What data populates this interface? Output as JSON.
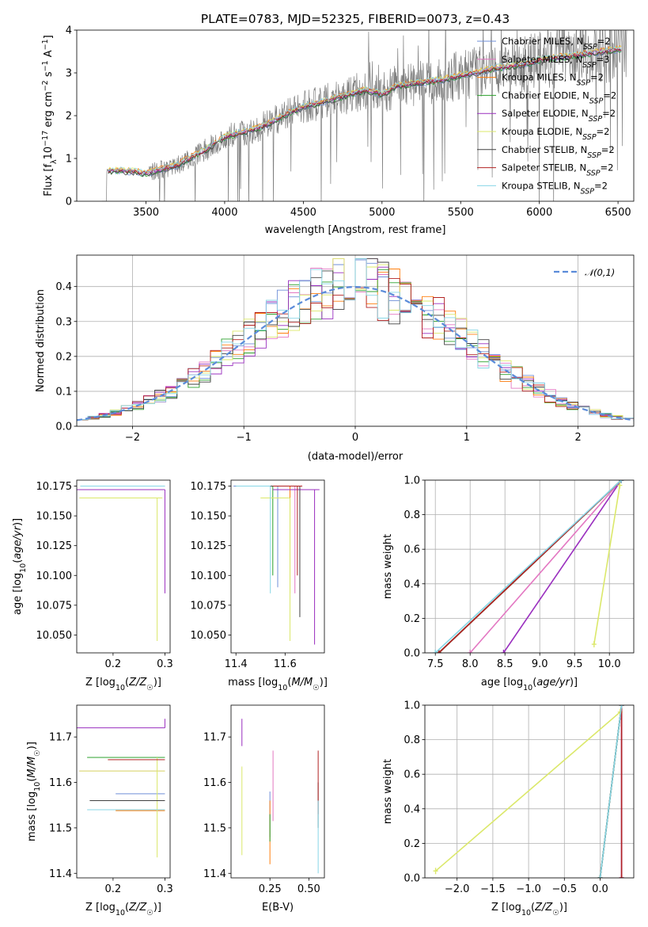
{
  "figure_title": "PLATE=0783, MJD=52325, FIBERID=0073, z=0.43",
  "colors": {
    "Chabrier MILES": "#6f8fd8",
    "Salpeter MILES": "#e377c2",
    "Kroupa MILES": "#ff7f0e",
    "Chabrier ELODIE": "#2ca02c",
    "Salpeter ELODIE": "#9a2fbf",
    "Kroupa ELODIE": "#dbe86a",
    "Chabrier STELIB": "#404040",
    "Salpeter STELIB": "#b22222",
    "Kroupa STELIB": "#87d6e6",
    "data": "#808080",
    "gaussian": "#5b8bd9"
  },
  "chart_data": [
    {
      "id": "spectrum",
      "type": "line",
      "xlabel": "wavelength [Angstrom, rest frame]",
      "ylabel": "Flux [f_λ 10^-17 erg cm^-2 s^-1 A^-1]",
      "xlim": [
        3060,
        6600
      ],
      "ylim": [
        0,
        4
      ],
      "xticks": [
        3500,
        4000,
        4500,
        5000,
        5500,
        6000,
        6500
      ],
      "yticks": [
        0,
        1,
        2,
        3,
        4
      ],
      "legend_position": "top-right",
      "legend": [
        {
          "name": "Chabrier MILES",
          "nssp": "2"
        },
        {
          "name": "Salpeter MILES",
          "nssp": "3"
        },
        {
          "name": "Kroupa MILES",
          "nssp": "2"
        },
        {
          "name": "Chabrier ELODIE",
          "nssp": "2"
        },
        {
          "name": "Salpeter ELODIE",
          "nssp": "2"
        },
        {
          "name": "Kroupa ELODIE",
          "nssp": "2"
        },
        {
          "name": "Chabrier STELIB",
          "nssp": "2"
        },
        {
          "name": "Salpeter STELIB",
          "nssp": "2"
        },
        {
          "name": "Kroupa STELIB",
          "nssp": "2"
        }
      ],
      "model_continuum": {
        "wavelength": [
          3200,
          3300,
          3400,
          3500,
          3600,
          3700,
          3800,
          3900,
          4000,
          4100,
          4200,
          4300,
          4400,
          4500,
          4600,
          4700,
          4800,
          4900,
          5000,
          5100,
          5200,
          5300,
          5400,
          5500,
          5600,
          5700,
          5800,
          5900,
          6000,
          6100,
          6200,
          6300,
          6400,
          6500
        ],
        "flux": [
          0.7,
          0.72,
          0.7,
          0.65,
          0.75,
          0.85,
          1.05,
          1.25,
          1.5,
          1.6,
          1.7,
          1.85,
          2.05,
          2.2,
          2.3,
          2.4,
          2.5,
          2.6,
          2.5,
          2.7,
          2.75,
          2.8,
          2.85,
          2.95,
          3.0,
          3.1,
          3.15,
          3.2,
          3.3,
          3.35,
          3.4,
          3.45,
          3.5,
          3.55
        ]
      }
    },
    {
      "id": "residuals",
      "type": "line",
      "xlabel": "(data-model)/error",
      "ylabel": "Normed distribution",
      "xlim": [
        -2.5,
        2.5
      ],
      "ylim": [
        0,
        0.49
      ],
      "xticks": [
        -2,
        -1,
        0,
        1,
        2
      ],
      "yticks": [
        0.0,
        0.1,
        0.2,
        0.3,
        0.4
      ],
      "legend_position": "top-right",
      "gaussian_label": "𝒩(0,1)",
      "gaussian": {
        "mean": 0,
        "sigma": 1
      }
    },
    {
      "id": "age_vs_Z",
      "type": "scatter",
      "xlabel": "Z [log10(Z/Z☉)]",
      "ylabel": "age [log10(age/yr)]",
      "xlim": [
        0.13,
        0.31
      ],
      "ylim": [
        10.035,
        10.18
      ],
      "xticks": [
        0.2,
        0.3
      ],
      "yticks": [
        10.05,
        10.075,
        10.1,
        10.125,
        10.15,
        10.175
      ],
      "series": [
        {
          "name": "Chabrier MILES",
          "x": 0.297,
          "y": 10.175,
          "xerr": [
            0.16,
            0.003
          ],
          "yerr": [
            0.0,
            0.0
          ]
        },
        {
          "name": "Salpeter MILES",
          "x": 0.297,
          "y": 10.175,
          "xerr": [
            0.16,
            0.003
          ],
          "yerr": [
            0.0,
            0.0
          ]
        },
        {
          "name": "Kroupa MILES",
          "x": 0.297,
          "y": 10.175,
          "xerr": [
            0.16,
            0.003
          ],
          "yerr": [
            0.0,
            0.0
          ]
        },
        {
          "name": "Chabrier ELODIE",
          "x": 0.297,
          "y": 10.175,
          "xerr": [
            0.16,
            0.003
          ],
          "yerr": [
            0.0,
            0.0
          ]
        },
        {
          "name": "Salpeter ELODIE",
          "x": 0.3,
          "y": 10.172,
          "xerr": [
            0.17,
            0.0
          ],
          "yerr": [
            0.087,
            0.0
          ]
        },
        {
          "name": "Kroupa ELODIE",
          "x": 0.285,
          "y": 10.165,
          "xerr": [
            0.15,
            0.01
          ],
          "yerr": [
            0.12,
            0.0
          ]
        },
        {
          "name": "Chabrier STELIB",
          "x": 0.297,
          "y": 10.175,
          "xerr": [
            0.16,
            0.003
          ],
          "yerr": [
            0.0,
            0.0
          ]
        },
        {
          "name": "Salpeter STELIB",
          "x": 0.297,
          "y": 10.175,
          "xerr": [
            0.16,
            0.003
          ],
          "yerr": [
            0.0,
            0.0
          ]
        },
        {
          "name": "Kroupa STELIB",
          "x": 0.297,
          "y": 10.175,
          "xerr": [
            0.16,
            0.003
          ],
          "yerr": [
            0.0,
            0.0
          ]
        }
      ]
    },
    {
      "id": "age_vs_mass",
      "type": "scatter",
      "xlabel": "mass [log10(M/M☉)]",
      "xlim": [
        11.38,
        11.76
      ],
      "ylim": [
        10.035,
        10.18
      ],
      "xticks": [
        11.4,
        11.6
      ],
      "yticks": [
        10.05,
        10.075,
        10.1,
        10.125,
        10.15,
        10.175
      ],
      "series": [
        {
          "name": "Chabrier MILES",
          "x": 11.57,
          "y": 10.175,
          "xerr": [
            0.18,
            0.0
          ],
          "yerr": [
            0.085,
            0.0
          ]
        },
        {
          "name": "Salpeter MILES",
          "x": 11.64,
          "y": 10.175,
          "xerr": [
            0.12,
            0.02
          ],
          "yerr": [
            0.09,
            0.0
          ]
        },
        {
          "name": "Kroupa MILES",
          "x": 11.62,
          "y": 10.175,
          "xerr": [
            0.2,
            0.03
          ],
          "yerr": [
            0.09,
            0.0
          ]
        },
        {
          "name": "Chabrier ELODIE",
          "x": 11.55,
          "y": 10.175,
          "xerr": [
            0.15,
            0.0
          ],
          "yerr": [
            0.075,
            0.0
          ]
        },
        {
          "name": "Salpeter ELODIE",
          "x": 11.72,
          "y": 10.172,
          "xerr": [
            0.17,
            0.02
          ],
          "yerr": [
            0.13,
            0.0
          ]
        },
        {
          "name": "Kroupa ELODIE",
          "x": 11.62,
          "y": 10.165,
          "xerr": [
            0.12,
            0.0
          ],
          "yerr": [
            0.12,
            0.0
          ]
        },
        {
          "name": "Chabrier STELIB",
          "x": 11.66,
          "y": 10.175,
          "xerr": [
            0.25,
            0.0
          ],
          "yerr": [
            0.11,
            0.0
          ]
        },
        {
          "name": "Salpeter STELIB",
          "x": 11.65,
          "y": 10.175,
          "xerr": [
            0.1,
            0.02
          ],
          "yerr": [
            0.075,
            0.0
          ]
        },
        {
          "name": "Kroupa STELIB",
          "x": 11.54,
          "y": 10.175,
          "xerr": [
            0.14,
            0.0
          ],
          "yerr": [
            0.09,
            0.0
          ]
        }
      ]
    },
    {
      "id": "massweight_vs_age",
      "type": "line",
      "xlabel": "age [log10(age/yr)]",
      "ylabel": "mass weight",
      "xlim": [
        7.35,
        10.35
      ],
      "ylim": [
        0,
        1
      ],
      "xticks": [
        7.5,
        8.0,
        8.5,
        9.0,
        9.5,
        10.0
      ],
      "yticks": [
        0.0,
        0.2,
        0.4,
        0.6,
        0.8,
        1.0
      ],
      "series": [
        {
          "name": "Chabrier MILES",
          "x": [
            7.55,
            10.17
          ],
          "y": [
            0.0,
            1.0
          ]
        },
        {
          "name": "Salpeter MILES",
          "x": [
            8.0,
            10.17
          ],
          "y": [
            0.0,
            1.0
          ]
        },
        {
          "name": "Kroupa MILES",
          "x": [
            7.55,
            10.17
          ],
          "y": [
            0.0,
            1.0
          ]
        },
        {
          "name": "Chabrier ELODIE",
          "x": [
            7.55,
            10.17
          ],
          "y": [
            0.0,
            1.0
          ]
        },
        {
          "name": "Salpeter ELODIE",
          "x": [
            8.48,
            10.17
          ],
          "y": [
            0.0,
            1.0
          ]
        },
        {
          "name": "Kroupa ELODIE",
          "x": [
            9.78,
            10.15
          ],
          "y": [
            0.05,
            0.97
          ]
        },
        {
          "name": "Chabrier STELIB",
          "x": [
            7.55,
            10.17
          ],
          "y": [
            0.0,
            1.0
          ]
        },
        {
          "name": "Salpeter STELIB",
          "x": [
            7.55,
            10.17
          ],
          "y": [
            0.0,
            1.0
          ]
        },
        {
          "name": "Kroupa STELIB",
          "x": [
            7.5,
            10.17
          ],
          "y": [
            0.0,
            1.0
          ]
        }
      ]
    },
    {
      "id": "mass_vs_Z",
      "type": "scatter",
      "xlabel": "Z [log10(Z/Z☉)]",
      "ylabel": "mass [log10(M/M☉)]",
      "xlim": [
        0.13,
        0.31
      ],
      "ylim": [
        11.39,
        11.77
      ],
      "xticks": [
        0.2,
        0.3
      ],
      "yticks": [
        11.4,
        11.5,
        11.6,
        11.7
      ],
      "series": [
        {
          "name": "Chabrier MILES",
          "x": 0.3,
          "y": 11.575,
          "xerr": [
            0.095,
            0.0
          ],
          "yerr": [
            0.0,
            0.0
          ]
        },
        {
          "name": "Salpeter MILES",
          "x": 0.3,
          "y": 11.625,
          "xerr": [
            0.165,
            0.0
          ],
          "yerr": [
            0.0,
            0.0
          ]
        },
        {
          "name": "Kroupa MILES",
          "x": 0.3,
          "y": 11.538,
          "xerr": [
            0.095,
            0.0
          ],
          "yerr": [
            0.0,
            0.0
          ]
        },
        {
          "name": "Chabrier ELODIE",
          "x": 0.3,
          "y": 11.655,
          "xerr": [
            0.15,
            0.0
          ],
          "yerr": [
            0.0,
            0.0
          ]
        },
        {
          "name": "Salpeter ELODIE",
          "x": 0.3,
          "y": 11.72,
          "xerr": [
            0.17,
            0.0
          ],
          "yerr": [
            0.0,
            0.02
          ]
        },
        {
          "name": "Kroupa ELODIE",
          "x": 0.285,
          "y": 11.625,
          "xerr": [
            0.15,
            0.015
          ],
          "yerr": [
            0.19,
            0.03
          ]
        },
        {
          "name": "Chabrier STELIB",
          "x": 0.3,
          "y": 11.56,
          "xerr": [
            0.145,
            0.0
          ],
          "yerr": [
            0.0,
            0.0
          ]
        },
        {
          "name": "Salpeter STELIB",
          "x": 0.3,
          "y": 11.65,
          "xerr": [
            0.11,
            0.0
          ],
          "yerr": [
            0.0,
            0.0
          ]
        },
        {
          "name": "Kroupa STELIB",
          "x": 0.3,
          "y": 11.54,
          "xerr": [
            0.15,
            0.0
          ],
          "yerr": [
            0.0,
            0.0
          ]
        }
      ]
    },
    {
      "id": "mass_vs_EBV",
      "type": "scatter",
      "xlabel": "E(B-V)",
      "xlim": [
        0.0,
        0.6
      ],
      "ylim": [
        11.39,
        11.77
      ],
      "xticks": [
        0.25,
        0.5
      ],
      "yticks": [
        11.4,
        11.5,
        11.6,
        11.7
      ],
      "series": [
        {
          "name": "Chabrier MILES",
          "x": 0.25,
          "y": 11.5,
          "xerr": [
            0.0,
            0.0
          ],
          "yerr": [
            0.02,
            0.08
          ]
        },
        {
          "name": "Salpeter MILES",
          "x": 0.27,
          "y": 11.6,
          "xerr": [
            0.0,
            0.0
          ],
          "yerr": [
            0.085,
            0.07
          ]
        },
        {
          "name": "Kroupa MILES",
          "x": 0.25,
          "y": 11.5,
          "xerr": [
            0.0,
            0.0
          ],
          "yerr": [
            0.08,
            0.06
          ]
        },
        {
          "name": "Chabrier ELODIE",
          "x": 0.25,
          "y": 11.5,
          "xerr": [
            0.0,
            0.0
          ],
          "yerr": [
            0.03,
            0.03
          ]
        },
        {
          "name": "Salpeter ELODIE",
          "x": 0.07,
          "y": 11.72,
          "xerr": [
            0.0,
            0.0
          ],
          "yerr": [
            0.04,
            0.02
          ]
        },
        {
          "name": "Kroupa ELODIE",
          "x": 0.07,
          "y": 11.55,
          "xerr": [
            0.0,
            0.0
          ],
          "yerr": [
            0.11,
            0.085
          ]
        },
        {
          "name": "Chabrier STELIB",
          "x": 0.56,
          "y": 11.55,
          "xerr": [
            0.0,
            0.0
          ],
          "yerr": [
            0.05,
            0.05
          ]
        },
        {
          "name": "Salpeter STELIB",
          "x": 0.56,
          "y": 11.58,
          "xerr": [
            0.0,
            0.0
          ],
          "yerr": [
            0.05,
            0.09
          ]
        },
        {
          "name": "Kroupa STELIB",
          "x": 0.56,
          "y": 11.5,
          "xerr": [
            0.0,
            0.0
          ],
          "yerr": [
            0.1,
            0.06
          ]
        }
      ]
    },
    {
      "id": "massweight_vs_Z",
      "type": "line",
      "xlabel": "Z [log10(Z/Z☉)]",
      "ylabel": "mass weight",
      "xlim": [
        -2.45,
        0.47
      ],
      "ylim": [
        0,
        1
      ],
      "xticks": [
        -2.0,
        -1.5,
        -1.0,
        -0.5,
        0.0
      ],
      "yticks": [
        0.0,
        0.2,
        0.4,
        0.6,
        0.8,
        1.0
      ],
      "series": [
        {
          "name": "Chabrier MILES",
          "x": [
            0.0,
            0.3
          ],
          "y": [
            0.0,
            1.0
          ]
        },
        {
          "name": "Salpeter MILES",
          "x": [
            0.0,
            0.3
          ],
          "y": [
            0.0,
            1.0
          ]
        },
        {
          "name": "Kroupa MILES",
          "x": [
            0.0,
            0.3
          ],
          "y": [
            0.0,
            1.0
          ]
        },
        {
          "name": "Chabrier ELODIE",
          "x": [
            0.0,
            0.3
          ],
          "y": [
            0.0,
            1.0
          ]
        },
        {
          "name": "Salpeter ELODIE",
          "x": [
            0.3,
            0.3
          ],
          "y": [
            0.0,
            1.0
          ]
        },
        {
          "name": "Kroupa ELODIE",
          "x": [
            -2.3,
            0.28
          ],
          "y": [
            0.04,
            0.96
          ]
        },
        {
          "name": "Chabrier STELIB",
          "x": [
            0.0,
            0.3
          ],
          "y": [
            0.0,
            1.0
          ]
        },
        {
          "name": "Salpeter STELIB",
          "x": [
            0.3,
            0.3
          ],
          "y": [
            0.0,
            1.0
          ]
        },
        {
          "name": "Kroupa STELIB",
          "x": [
            0.0,
            0.3
          ],
          "y": [
            0.0,
            1.0
          ]
        }
      ]
    }
  ]
}
